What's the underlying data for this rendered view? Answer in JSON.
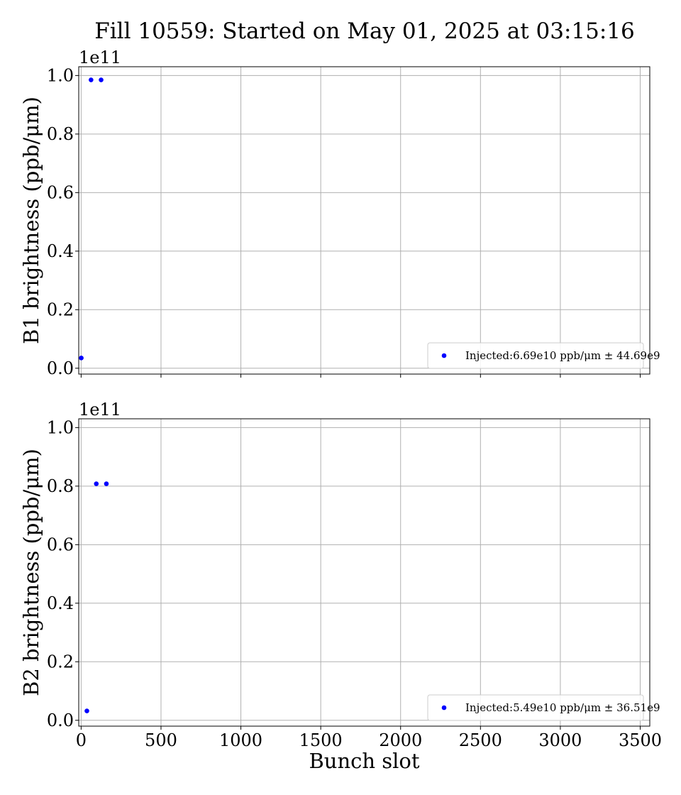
{
  "chart_data": [
    {
      "type": "scatter",
      "title": "Fill 10559: Started on May 01, 2025 at 03:15:16",
      "xlabel": "",
      "ylabel": "B1 brightness (ppb/μm)",
      "y_offset_label": "1e11",
      "xlim": [
        -15,
        3560
      ],
      "ylim": [
        -0.02,
        1.03
      ],
      "y_scale": 100000000000.0,
      "x_ticks": [
        0,
        500,
        1000,
        1500,
        2000,
        2500,
        3000,
        3500
      ],
      "x_tick_labels_visible": false,
      "y_ticks": [
        0.0,
        0.2,
        0.4,
        0.6,
        0.8,
        1.0
      ],
      "y_tick_labels": [
        "0.0",
        "0.2",
        "0.4",
        "0.6",
        "0.8",
        "1.0"
      ],
      "grid": true,
      "legend_position": "lower-right",
      "series": [
        {
          "name": "Injected:6.69e10 ppb/μm ± 44.69e9",
          "color": "#0000ff",
          "marker": "circle",
          "points": [
            {
              "x": 1,
              "y": 0.035
            },
            {
              "x": 62,
              "y": 0.985
            },
            {
              "x": 125,
              "y": 0.985
            }
          ]
        }
      ]
    },
    {
      "type": "scatter",
      "title": "",
      "xlabel": "Bunch slot",
      "ylabel": "B2 brightness (ppb/μm)",
      "y_offset_label": "1e11",
      "xlim": [
        -15,
        3560
      ],
      "ylim": [
        -0.02,
        1.03
      ],
      "y_scale": 100000000000.0,
      "x_ticks": [
        0,
        500,
        1000,
        1500,
        2000,
        2500,
        3000,
        3500
      ],
      "x_tick_labels": [
        "0",
        "500",
        "1000",
        "1500",
        "2000",
        "2500",
        "3000",
        "3500"
      ],
      "x_tick_labels_visible": true,
      "y_ticks": [
        0.0,
        0.2,
        0.4,
        0.6,
        0.8,
        1.0
      ],
      "y_tick_labels": [
        "0.0",
        "0.2",
        "0.4",
        "0.6",
        "0.8",
        "1.0"
      ],
      "grid": true,
      "legend_position": "lower-right",
      "series": [
        {
          "name": "Injected:5.49e10 ppb/μm ± 36.51e9",
          "color": "#0000ff",
          "marker": "circle",
          "points": [
            {
              "x": 36,
              "y": 0.032
            },
            {
              "x": 95,
              "y": 0.808
            },
            {
              "x": 158,
              "y": 0.808
            }
          ]
        }
      ]
    }
  ]
}
